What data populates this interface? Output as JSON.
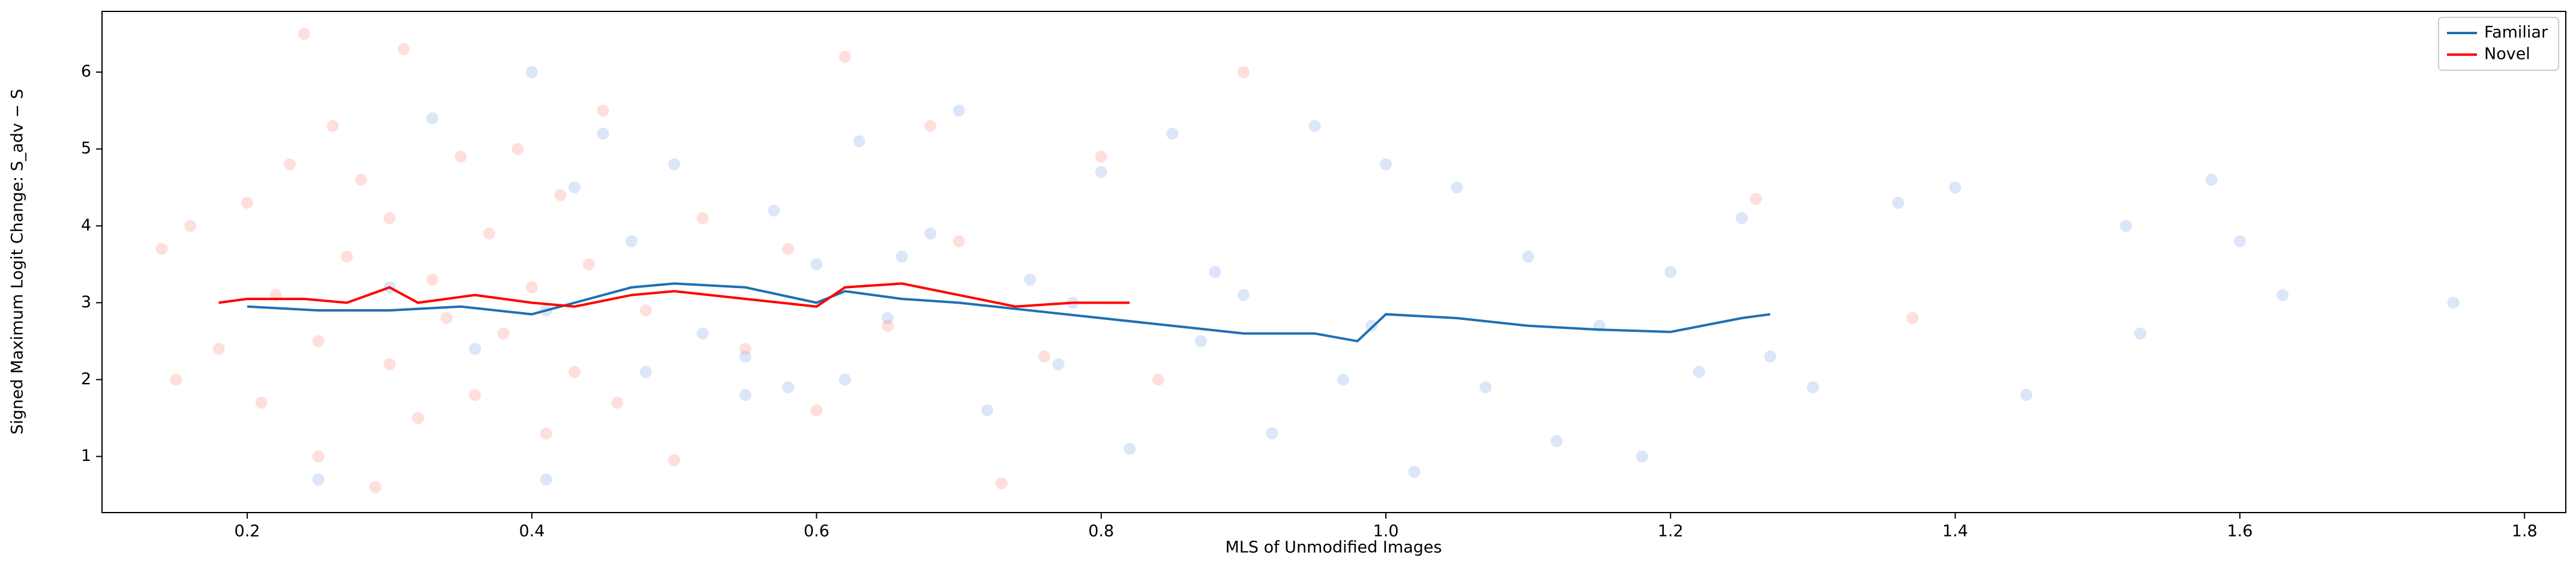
{
  "chart_data": {
    "type": "scatter",
    "xlabel": "MLS of Unmodified Images",
    "ylabel": "Signed Maximum Logit Change: S_adv − S",
    "xlim": [
      0.098,
      1.829
    ],
    "ylim": [
      0.27,
      6.79
    ],
    "xticks": [
      0.2,
      0.4,
      0.6,
      0.8,
      {
        "value": 1,
        "label": "1.0"
      },
      1.2,
      1.4,
      1.6,
      1.8
    ],
    "yticks": [
      1,
      2,
      3,
      4,
      5,
      6
    ],
    "legend": "upper right",
    "points": [
      {
        "color": "#6f9ce8",
        "x": [
          0.25,
          0.3,
          0.33,
          0.36,
          0.4,
          0.41,
          0.43,
          0.45,
          0.47,
          0.48,
          0.5,
          0.52,
          0.55,
          0.57,
          0.6,
          0.62,
          0.63,
          0.65,
          0.68,
          0.7,
          0.72,
          0.75,
          0.77,
          0.8,
          0.82,
          0.85,
          0.87,
          0.9,
          0.92,
          0.95,
          0.97,
          1.0,
          1.02,
          1.05,
          1.07,
          1.1,
          1.12,
          1.15,
          1.18,
          1.2,
          1.22,
          1.25,
          1.27,
          1.3,
          1.36,
          1.4,
          1.45,
          1.52,
          1.53,
          1.58,
          1.6,
          1.63,
          1.75,
          0.41,
          0.55,
          0.66,
          0.78,
          0.99,
          0.58,
          0.88
        ],
        "values": [
          0.7,
          3.2,
          5.4,
          2.4,
          6.0,
          0.7,
          4.5,
          5.2,
          3.8,
          2.1,
          4.8,
          2.6,
          1.8,
          4.2,
          3.5,
          2.0,
          5.1,
          2.8,
          3.9,
          5.5,
          1.6,
          3.3,
          2.2,
          4.7,
          1.1,
          5.2,
          2.5,
          3.1,
          1.3,
          5.3,
          2.0,
          4.8,
          0.8,
          4.5,
          1.9,
          3.6,
          1.2,
          2.7,
          1.0,
          3.4,
          2.1,
          4.1,
          2.3,
          1.9,
          4.3,
          4.5,
          1.8,
          4.0,
          2.6,
          4.6,
          3.8,
          3.1,
          3.0,
          2.9,
          2.3,
          3.6,
          3.0,
          2.7,
          1.9,
          3.4
        ]
      },
      {
        "color": "#fa8072",
        "x": [
          0.14,
          0.15,
          0.16,
          0.18,
          0.2,
          0.21,
          0.22,
          0.23,
          0.24,
          0.25,
          0.25,
          0.26,
          0.27,
          0.28,
          0.29,
          0.3,
          0.3,
          0.31,
          0.32,
          0.33,
          0.34,
          0.35,
          0.36,
          0.37,
          0.38,
          0.39,
          0.4,
          0.41,
          0.42,
          0.43,
          0.44,
          0.45,
          0.46,
          0.48,
          0.5,
          0.52,
          0.55,
          0.58,
          0.6,
          0.62,
          0.65,
          0.68,
          0.7,
          0.73,
          0.76,
          0.8,
          0.84,
          0.9,
          1.26,
          1.37
        ],
        "values": [
          3.7,
          2.0,
          4.0,
          2.4,
          4.3,
          1.7,
          3.1,
          4.8,
          6.5,
          1.0,
          2.5,
          5.3,
          3.6,
          4.6,
          0.6,
          2.2,
          4.1,
          6.3,
          1.5,
          3.3,
          2.8,
          4.9,
          1.8,
          3.9,
          2.6,
          5.0,
          3.2,
          1.3,
          4.4,
          2.1,
          3.5,
          5.5,
          1.7,
          2.9,
          0.95,
          4.1,
          2.4,
          3.7,
          1.6,
          6.2,
          2.7,
          5.3,
          3.8,
          0.65,
          2.3,
          4.9,
          2.0,
          6.0,
          4.35,
          2.8
        ]
      }
    ],
    "series": [
      {
        "name": "Familiar",
        "color": "#1f6fb4",
        "x": [
          0.2,
          0.25,
          0.3,
          0.35,
          0.4,
          0.43,
          0.47,
          0.5,
          0.55,
          0.6,
          0.62,
          0.66,
          0.7,
          0.75,
          0.8,
          0.85,
          0.9,
          0.95,
          0.98,
          1.0,
          1.05,
          1.1,
          1.15,
          1.2,
          1.25,
          1.27
        ],
        "values": [
          2.95,
          2.9,
          2.9,
          2.95,
          2.85,
          3.0,
          3.2,
          3.25,
          3.2,
          3.0,
          3.15,
          3.05,
          3.0,
          2.9,
          2.8,
          2.7,
          2.6,
          2.6,
          2.5,
          2.85,
          2.8,
          2.7,
          2.65,
          2.62,
          2.8,
          2.85
        ]
      },
      {
        "name": "Novel",
        "color": "#ff0000",
        "x": [
          0.18,
          0.2,
          0.24,
          0.27,
          0.3,
          0.32,
          0.36,
          0.4,
          0.43,
          0.47,
          0.5,
          0.55,
          0.6,
          0.62,
          0.66,
          0.7,
          0.74,
          0.78,
          0.82
        ],
        "values": [
          3.0,
          3.05,
          3.05,
          3.0,
          3.2,
          3.0,
          3.1,
          3.0,
          2.95,
          3.1,
          3.15,
          3.05,
          2.95,
          3.2,
          3.25,
          3.1,
          2.95,
          3.0,
          3.0
        ]
      }
    ]
  }
}
